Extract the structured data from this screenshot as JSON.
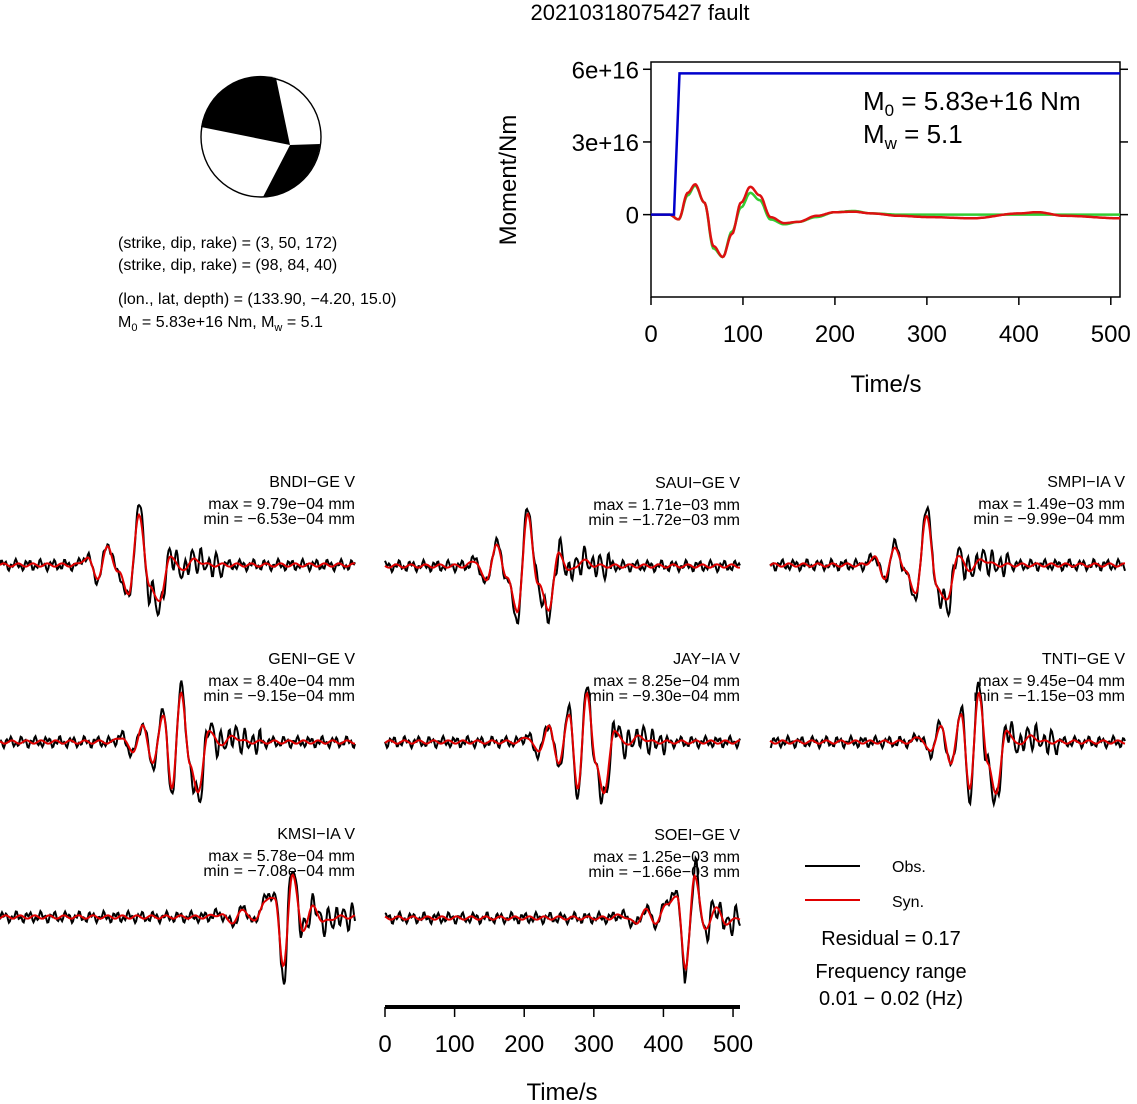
{
  "title": "20210318075427 fault",
  "focal": {
    "np1": "(strike, dip, rake) = (3, 50, 172)",
    "np2": "(strike, dip, rake) = (98, 84, 40)",
    "location": "(lon., lat, depth) = (133.90, −4.20, 15.0)",
    "m0_prefix": "M",
    "m0_sub": "0",
    "m0_rest": " = 5.83e+16 Nm, M",
    "mw_sub": "w",
    "mw_rest": " = 5.1"
  },
  "moment": {
    "ylabel": "Moment/Nm",
    "xlabel": "Time/s",
    "m0_label_a": "M",
    "m0_label_sub": "0",
    "m0_label_b": " = 5.83e+16 Nm",
    "mw_label_a": "M",
    "mw_label_sub": "w",
    "mw_label_b": " = 5.1"
  },
  "legend": {
    "obs": "Obs.",
    "syn": "Syn.",
    "residual": "Residual = 0.17",
    "freq_title": "Frequency range",
    "freq_value": "0.01 − 0.02 (Hz)"
  },
  "wave_axis": {
    "xlabel": "Time/s"
  },
  "colors": {
    "obs": "#000000",
    "syn": "#e00000",
    "moment": "#0000cc",
    "stf_green": "#33cc33",
    "stf_red": "#dd1111"
  },
  "chart_data": [
    {
      "type": "line",
      "name": "moment-function",
      "xlabel": "Time/s",
      "ylabel": "Moment/Nm",
      "xlim": [
        0,
        510
      ],
      "ylim": [
        -3.4e+16,
        6.3e+16
      ],
      "xticks": [
        0,
        100,
        200,
        300,
        400,
        500
      ],
      "xtick_labels": [
        "0",
        "100",
        "200",
        "300",
        "400",
        "500"
      ],
      "yticks": [
        0,
        3e+16,
        6e+16
      ],
      "ytick_labels": [
        "0",
        "3e+16",
        "6e+16"
      ],
      "series": [
        {
          "color": "#0000cc",
          "x": [
            0,
            25,
            31,
            510
          ],
          "y": [
            0,
            0,
            5.83e+16,
            5.83e+16
          ]
        },
        {
          "color": "#33cc33",
          "x": [
            0,
            20,
            30,
            40,
            48,
            58,
            68,
            78,
            88,
            98,
            108,
            118,
            130,
            145,
            160,
            180,
            200,
            220,
            240,
            270,
            300,
            350,
            400,
            450,
            510
          ],
          "y": [
            0,
            0,
            -2000000000000000.0,
            8000000000000000.0,
            1.2e+16,
            5000000000000000.0,
            -1.4e+16,
            -1.75e+16,
            -7000000000000000.0,
            3000000000000000.0,
            9000000000000000.0,
            6000000000000000.0,
            -2000000000000000.0,
            -4000000000000000.0,
            -3000000000000000.0,
            -1000000000000000.0,
            1000000000000000.0,
            1500000000000000.0,
            500000000000000.0,
            0,
            0,
            0,
            0,
            0,
            0
          ]
        },
        {
          "color": "#dd1111",
          "x": [
            0,
            20,
            30,
            40,
            48,
            58,
            68,
            78,
            88,
            98,
            108,
            118,
            130,
            145,
            160,
            180,
            200,
            220,
            240,
            270,
            300,
            350,
            400,
            420,
            450,
            510
          ],
          "y": [
            0,
            0,
            -2000000000000000.0,
            9000000000000000.0,
            1.25e+16,
            5000000000000000.0,
            -1.3e+16,
            -1.75e+16,
            -8000000000000000.0,
            5000000000000000.0,
            1.15e+16,
            8000000000000000.0,
            -1000000000000000.0,
            -3500000000000000.0,
            -3000000000000000.0,
            -500000000000000.0,
            1000000000000000.0,
            1200000000000000.0,
            500000000000000.0,
            -500000000000000.0,
            -1000000000000000.0,
            -1500000000000000.0,
            500000000000000.0,
            1000000000000000.0,
            -500000000000000.0,
            -1500000000000000.0
          ]
        }
      ]
    },
    {
      "type": "line",
      "name": "waveforms",
      "xlabel": "Time/s",
      "xlim": [
        0,
        510
      ],
      "xticks": [
        0,
        100,
        200,
        300,
        400,
        500
      ],
      "xtick_labels": [
        "0",
        "100",
        "200",
        "300",
        "400",
        "500"
      ],
      "stations": [
        {
          "label": "BNDI−GE V",
          "max": "max = 9.79e−04 mm",
          "min": "min = −6.53e−04 mm",
          "center": 200,
          "pattern": "a"
        },
        {
          "label": "SAUI−GE V",
          "max": "max = 1.71e−03 mm",
          "min": "min = −1.72e−03 mm",
          "center": 205,
          "pattern": "b"
        },
        {
          "label": "SMPI−IA V",
          "max": "max = 1.49e−03 mm",
          "min": "min = −9.99e−04 mm",
          "center": 225,
          "pattern": "a"
        },
        {
          "label": "GENI−GE V",
          "max": "max = 8.40e−04 mm",
          "min": "min = −9.15e−04 mm",
          "center": 255,
          "pattern": "c"
        },
        {
          "label": "JAY−IA V",
          "max": "max = 8.25e−04 mm",
          "min": "min = −9.30e−04 mm",
          "center": 285,
          "pattern": "c"
        },
        {
          "label": "TNTI−GE V",
          "max": "max = 9.45e−04 mm",
          "min": "min = −1.15e−03 mm",
          "center": 295,
          "pattern": "c"
        },
        {
          "label": "KMSI−IA V",
          "max": "max = 5.78e−04 mm",
          "min": "min = −7.08e−04 mm",
          "center": 395,
          "pattern": "d"
        },
        {
          "label": "SOEI−GE V",
          "max": "max = 1.25e−03 mm",
          "min": "min = −1.66e−03 mm",
          "center": 420,
          "pattern": "d"
        }
      ]
    }
  ]
}
